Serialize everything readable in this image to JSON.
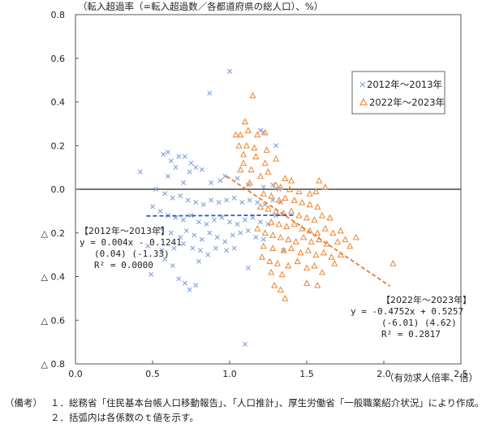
{
  "chart_data": {
    "type": "scatter",
    "title": "（転入超過率（=転入超過数／各都道府県の総人口）、%）",
    "xlabel": "（有効求人倍率、倍）",
    "ylabel": "",
    "xlim": [
      0.0,
      2.5
    ],
    "ylim": [
      -0.8,
      0.8
    ],
    "x_ticks": [
      "0.0",
      "0.5",
      "1.0",
      "1.5",
      "2.0",
      "2.5"
    ],
    "y_ticks": [
      "0.8",
      "0.6",
      "0.4",
      "0.2",
      "0.0",
      "△ 0.2",
      "△ 0.4",
      "△ 0.6",
      "△ 0.8"
    ],
    "legend_position": "top-right",
    "series": [
      {
        "name": "2012年～2013年",
        "marker": "x",
        "color": "#7f9fd8",
        "points": [
          [
            1.0,
            0.54
          ],
          [
            0.87,
            0.44
          ],
          [
            1.2,
            0.27
          ],
          [
            1.22,
            0.26
          ],
          [
            1.3,
            0.2
          ],
          [
            0.42,
            0.08
          ],
          [
            0.57,
            0.16
          ],
          [
            0.6,
            0.17
          ],
          [
            0.62,
            0.13
          ],
          [
            0.67,
            0.15
          ],
          [
            0.71,
            0.15
          ],
          [
            0.75,
            0.12
          ],
          [
            0.78,
            0.1
          ],
          [
            0.74,
            0.08
          ],
          [
            0.65,
            0.1
          ],
          [
            0.82,
            0.09
          ],
          [
            0.97,
            0.06
          ],
          [
            0.94,
            0.04
          ],
          [
            0.88,
            0.03
          ],
          [
            0.6,
            0.06
          ],
          [
            0.7,
            0.03
          ],
          [
            1.05,
            0.05
          ],
          [
            1.12,
            0.02
          ],
          [
            1.22,
            0.01
          ],
          [
            1.28,
            0.02
          ],
          [
            1.32,
            0.0
          ],
          [
            0.52,
            0.0
          ],
          [
            0.58,
            -0.02
          ],
          [
            0.63,
            -0.04
          ],
          [
            0.68,
            -0.03
          ],
          [
            0.73,
            -0.05
          ],
          [
            0.78,
            -0.06
          ],
          [
            0.83,
            -0.07
          ],
          [
            0.88,
            -0.05
          ],
          [
            0.93,
            -0.06
          ],
          [
            0.98,
            -0.05
          ],
          [
            1.03,
            -0.04
          ],
          [
            1.08,
            -0.06
          ],
          [
            1.13,
            -0.05
          ],
          [
            1.18,
            -0.06
          ],
          [
            1.23,
            -0.07
          ],
          [
            1.28,
            -0.05
          ],
          [
            1.33,
            -0.06
          ],
          [
            0.5,
            -0.08
          ],
          [
            0.55,
            -0.1
          ],
          [
            0.6,
            -0.12
          ],
          [
            0.65,
            -0.13
          ],
          [
            0.7,
            -0.14
          ],
          [
            0.75,
            -0.12
          ],
          [
            0.8,
            -0.15
          ],
          [
            0.85,
            -0.16
          ],
          [
            0.9,
            -0.14
          ],
          [
            0.95,
            -0.13
          ],
          [
            1.0,
            -0.15
          ],
          [
            1.05,
            -0.16
          ],
          [
            1.1,
            -0.14
          ],
          [
            1.15,
            -0.13
          ],
          [
            1.2,
            -0.15
          ],
          [
            1.25,
            -0.16
          ],
          [
            1.3,
            -0.12
          ],
          [
            0.55,
            -0.18
          ],
          [
            0.62,
            -0.2
          ],
          [
            0.68,
            -0.22
          ],
          [
            0.72,
            -0.19
          ],
          [
            0.77,
            -0.21
          ],
          [
            0.82,
            -0.23
          ],
          [
            0.87,
            -0.2
          ],
          [
            0.92,
            -0.22
          ],
          [
            0.97,
            -0.24
          ],
          [
            1.02,
            -0.21
          ],
          [
            1.07,
            -0.2
          ],
          [
            1.12,
            -0.19
          ],
          [
            1.17,
            -0.22
          ],
          [
            1.22,
            -0.23
          ],
          [
            0.47,
            -0.26
          ],
          [
            0.56,
            -0.28
          ],
          [
            0.64,
            -0.27
          ],
          [
            0.7,
            -0.25
          ],
          [
            0.76,
            -0.27
          ],
          [
            0.81,
            -0.28
          ],
          [
            0.86,
            -0.3
          ],
          [
            0.91,
            -0.27
          ],
          [
            0.98,
            -0.28
          ],
          [
            1.03,
            -0.27
          ],
          [
            1.35,
            -0.28
          ],
          [
            0.58,
            -0.32
          ],
          [
            0.63,
            -0.35
          ],
          [
            0.8,
            -0.33
          ],
          [
            1.12,
            -0.36
          ],
          [
            0.49,
            -0.39
          ],
          [
            0.67,
            -0.41
          ],
          [
            0.71,
            -0.43
          ],
          [
            0.74,
            -0.46
          ],
          [
            0.78,
            -0.44
          ],
          [
            1.1,
            -0.71
          ]
        ]
      },
      {
        "name": "2022年～2023年",
        "marker": "triangle",
        "color": "#f08c3c",
        "points": [
          [
            1.15,
            0.43
          ],
          [
            1.1,
            0.31
          ],
          [
            1.04,
            0.25
          ],
          [
            1.07,
            0.25
          ],
          [
            1.12,
            0.27
          ],
          [
            1.18,
            0.25
          ],
          [
            1.23,
            0.26
          ],
          [
            1.06,
            0.2
          ],
          [
            1.11,
            0.2
          ],
          [
            1.16,
            0.19
          ],
          [
            1.24,
            0.18
          ],
          [
            1.09,
            0.16
          ],
          [
            1.17,
            0.15
          ],
          [
            1.3,
            0.14
          ],
          [
            1.09,
            0.12
          ],
          [
            1.23,
            0.12
          ],
          [
            1.07,
            0.09
          ],
          [
            1.14,
            0.09
          ],
          [
            1.25,
            0.08
          ],
          [
            1.2,
            0.06
          ],
          [
            1.36,
            0.05
          ],
          [
            1.4,
            0.04
          ],
          [
            1.13,
            0.03
          ],
          [
            1.3,
            0.02
          ],
          [
            1.33,
            0.01
          ],
          [
            1.58,
            0.04
          ],
          [
            1.62,
            0.01
          ],
          [
            1.39,
            0.0
          ],
          [
            1.45,
            -0.01
          ],
          [
            1.52,
            -0.02
          ],
          [
            1.56,
            -0.01
          ],
          [
            1.22,
            -0.02
          ],
          [
            1.27,
            -0.03
          ],
          [
            1.32,
            -0.05
          ],
          [
            1.36,
            -0.04
          ],
          [
            1.42,
            -0.05
          ],
          [
            1.47,
            -0.06
          ],
          [
            1.52,
            -0.07
          ],
          [
            1.57,
            -0.08
          ],
          [
            1.2,
            -0.08
          ],
          [
            1.25,
            -0.09
          ],
          [
            1.3,
            -0.1
          ],
          [
            1.35,
            -0.11
          ],
          [
            1.4,
            -0.1
          ],
          [
            1.45,
            -0.12
          ],
          [
            1.5,
            -0.13
          ],
          [
            1.55,
            -0.14
          ],
          [
            1.6,
            -0.12
          ],
          [
            1.65,
            -0.13
          ],
          [
            1.27,
            -0.15
          ],
          [
            1.32,
            -0.16
          ],
          [
            1.37,
            -0.17
          ],
          [
            1.42,
            -0.16
          ],
          [
            1.47,
            -0.18
          ],
          [
            1.52,
            -0.19
          ],
          [
            1.57,
            -0.2
          ],
          [
            1.62,
            -0.18
          ],
          [
            1.67,
            -0.2
          ],
          [
            1.72,
            -0.19
          ],
          [
            1.18,
            -0.18
          ],
          [
            1.23,
            -0.2
          ],
          [
            1.28,
            -0.21
          ],
          [
            1.33,
            -0.22
          ],
          [
            1.38,
            -0.23
          ],
          [
            1.43,
            -0.24
          ],
          [
            1.48,
            -0.22
          ],
          [
            1.53,
            -0.24
          ],
          [
            1.58,
            -0.23
          ],
          [
            1.63,
            -0.25
          ],
          [
            1.7,
            -0.24
          ],
          [
            1.75,
            -0.23
          ],
          [
            1.82,
            -0.22
          ],
          [
            1.22,
            -0.26
          ],
          [
            1.28,
            -0.27
          ],
          [
            1.35,
            -0.28
          ],
          [
            1.4,
            -0.27
          ],
          [
            1.46,
            -0.29
          ],
          [
            1.51,
            -0.28
          ],
          [
            1.56,
            -0.3
          ],
          [
            1.61,
            -0.29
          ],
          [
            1.66,
            -0.31
          ],
          [
            1.72,
            -0.3
          ],
          [
            1.78,
            -0.26
          ],
          [
            1.21,
            -0.31
          ],
          [
            1.26,
            -0.33
          ],
          [
            1.31,
            -0.34
          ],
          [
            1.38,
            -0.35
          ],
          [
            1.44,
            -0.33
          ],
          [
            1.5,
            -0.36
          ],
          [
            1.55,
            -0.35
          ],
          [
            1.6,
            -0.38
          ],
          [
            1.68,
            -0.34
          ],
          [
            2.06,
            -0.34
          ],
          [
            1.27,
            -0.38
          ],
          [
            1.34,
            -0.39
          ],
          [
            1.29,
            -0.44
          ],
          [
            1.33,
            -0.46
          ],
          [
            1.5,
            -0.43
          ],
          [
            1.57,
            -0.44
          ],
          [
            1.36,
            -0.5
          ]
        ]
      }
    ],
    "fits": [
      {
        "series": "2012年～2013年",
        "slope": 0.004,
        "intercept": -0.1241,
        "x_range": [
          0.46,
          1.42
        ],
        "style": "dashed",
        "color": "#2b57c4"
      },
      {
        "series": "2022年～2023年",
        "slope": -0.4752,
        "intercept": 0.5257,
        "x_range": [
          0.98,
          2.04
        ],
        "style": "dashed",
        "color": "#ee7a26"
      }
    ],
    "annotations": {
      "a2012": {
        "title": "【2012年～2013年】",
        "equation": "y = 0.004x - 0.1241",
        "tvalues": "(0.04)  (-1.33)",
        "r2": "R² = 0.0000"
      },
      "a2022": {
        "title": "【2022年～2023年】",
        "equation": "y = -0.4752x + 0.5257",
        "tvalues": "(-6.01)      (4.62)",
        "r2": "R² = 0.2817"
      }
    }
  },
  "notes": {
    "label": "（備考）",
    "line1": "１．総務省「住民基本台帳人口移動報告」、「人口推計」、厚生労働省「一般職業紹介状況」により作成。",
    "line2": "２．括弧内は各係数のｔ値を示す。"
  }
}
